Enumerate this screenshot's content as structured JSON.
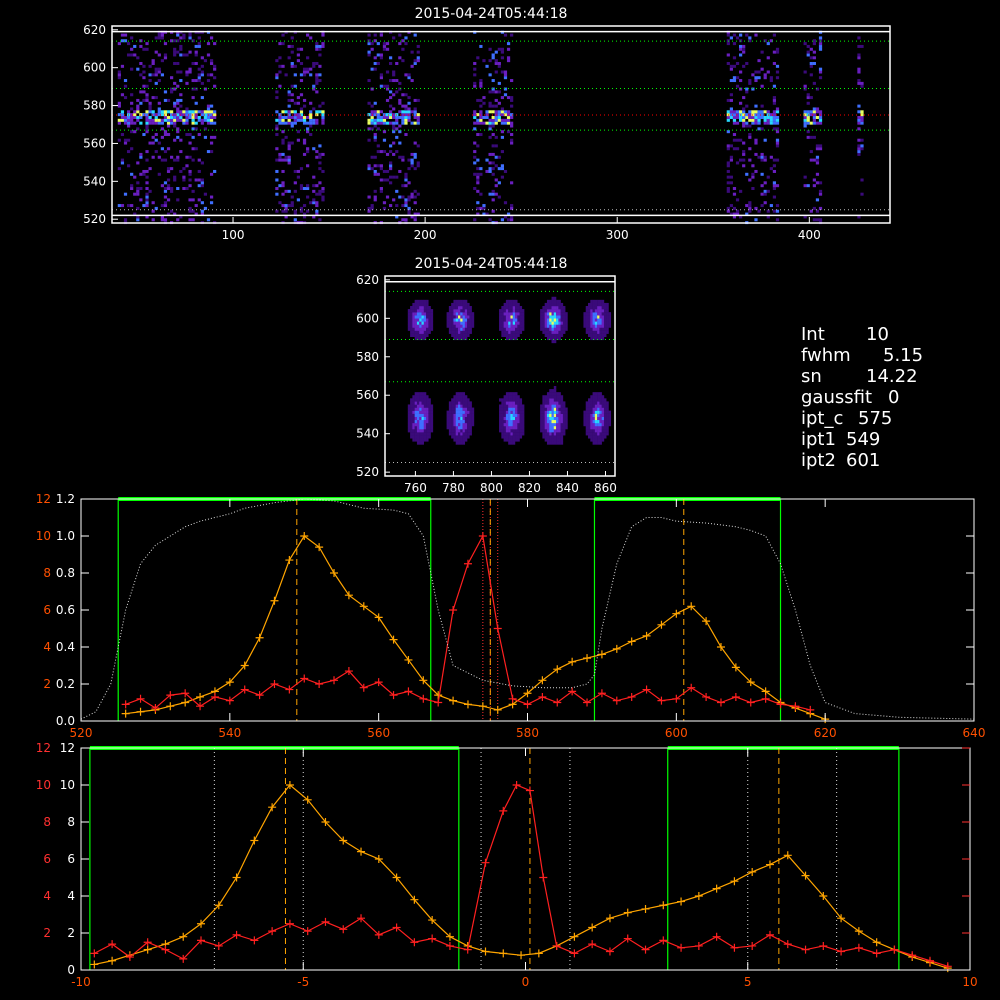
{
  "colors": {
    "background": "#000000",
    "frame": "#ffffff",
    "orange_series": "#ffa500",
    "red_series": "#ff2020",
    "green": "#00ff00",
    "dotted_line": "#bbbbbb",
    "orange_axis": "#ff5000",
    "tick_labels": "#ffffff"
  },
  "info_panel": {
    "int_label": "Int",
    "int_value": "10",
    "fwhm_label": "fwhm",
    "fwhm_value": "5.15",
    "sn_label": "sn",
    "sn_value": "14.22",
    "gaussfit_label": "gaussfit",
    "gaussfit_value": "0",
    "ipt_c_label": "ipt_c",
    "ipt_c_value": "575",
    "ipt1_label": "ipt1",
    "ipt1_value": "549",
    "ipt2_label": "ipt2",
    "ipt2_value": "601"
  },
  "chart_data": [
    {
      "id": "top-image",
      "type": "heatmap",
      "title": "2015-04-24T05:44:18",
      "xlim": [
        37,
        442
      ],
      "ylim": [
        518,
        622
      ],
      "x_ticks": [
        100,
        200,
        300,
        400
      ],
      "y_ticks": [
        520,
        540,
        560,
        580,
        600,
        620
      ],
      "horizontal_lines": [
        {
          "y": 525,
          "style": "dotted",
          "color": "#bbbbbb"
        },
        {
          "y": 567,
          "style": "dotted",
          "color": "#00ff00"
        },
        {
          "y": 575,
          "style": "dotted",
          "color": "#ff0000"
        },
        {
          "y": 589,
          "style": "dotted",
          "color": "#00ff00"
        },
        {
          "y": 614,
          "style": "dotted",
          "color": "#00ff00"
        },
        {
          "y": 619,
          "style": "solid",
          "color": "#ffffff"
        },
        {
          "y": 522,
          "style": "solid",
          "color": "#ffffff"
        }
      ],
      "columns": [
        [
          40,
          90
        ],
        [
          122,
          146
        ],
        [
          170,
          197
        ],
        [
          225,
          245
        ],
        [
          357,
          383
        ],
        [
          397,
          406
        ],
        [
          425,
          428
        ]
      ],
      "hot_band_y": 575
    },
    {
      "id": "middle-image",
      "type": "heatmap",
      "title": "2015-04-24T05:44:18",
      "xlim": [
        744,
        865
      ],
      "ylim": [
        518,
        622
      ],
      "x_ticks": [
        760,
        780,
        800,
        820,
        840,
        860
      ],
      "y_ticks": [
        520,
        540,
        560,
        580,
        600,
        620
      ],
      "horizontal_lines": [
        {
          "y": 525,
          "style": "dotted",
          "color": "#bbbbbb"
        },
        {
          "y": 567,
          "style": "dotted",
          "color": "#00ff00"
        },
        {
          "y": 589,
          "style": "dotted",
          "color": "#00ff00"
        },
        {
          "y": 614,
          "style": "dotted",
          "color": "#00ff00"
        },
        {
          "y": 619,
          "style": "solid",
          "color": "#ffffff"
        }
      ],
      "blob_x": [
        762,
        783,
        810,
        832,
        855
      ],
      "blob_rows": [
        600,
        549
      ]
    },
    {
      "id": "profile-pixels",
      "type": "line",
      "xlim": [
        520,
        640
      ],
      "ylim_left": [
        0,
        1.2
      ],
      "ylim_right": [
        0,
        12
      ],
      "x_ticks": [
        520,
        540,
        560,
        580,
        600,
        620,
        640
      ],
      "left_ticks_white": [
        "0.0",
        "0.2",
        "0.4",
        "0.6",
        "0.8",
        "1.0",
        "1.2"
      ],
      "left_ticks_orange": [
        "2",
        "4",
        "6",
        "8",
        "10",
        "12"
      ],
      "vertical_dashed_orange": [
        549,
        575,
        601
      ],
      "vertical_dotted_red": [
        574,
        575,
        576
      ],
      "green_windows": [
        [
          525,
          567
        ],
        [
          589,
          614
        ]
      ],
      "series": [
        {
          "x": [
            526,
            528,
            530,
            532,
            534,
            536,
            538,
            540,
            542,
            544,
            546,
            548,
            550,
            552,
            554,
            556,
            558,
            560,
            562,
            564,
            566,
            568,
            570,
            572,
            574,
            576,
            578,
            580,
            582,
            584,
            586,
            588,
            590,
            592,
            594,
            596,
            598,
            600,
            602,
            604,
            606,
            608,
            610,
            612,
            614,
            616,
            618,
            620
          ],
          "values": [
            0.4,
            0.5,
            0.6,
            0.8,
            1.0,
            1.3,
            1.6,
            2.1,
            3.0,
            4.5,
            6.5,
            8.7,
            10.0,
            9.4,
            8.0,
            6.8,
            6.2,
            5.6,
            4.4,
            3.3,
            2.2,
            1.4,
            1.1,
            0.9,
            0.8,
            0.6,
            0.9,
            1.5,
            2.2,
            2.8,
            3.2,
            3.4,
            3.6,
            3.9,
            4.3,
            4.6,
            5.2,
            5.8,
            6.2,
            5.4,
            4.0,
            2.9,
            2.1,
            1.6,
            1.0,
            0.7,
            0.4,
            0.1
          ],
          "color": "#ffa500",
          "marker": "+"
        },
        {
          "x": [
            526,
            528,
            530,
            532,
            534,
            536,
            538,
            540,
            542,
            544,
            546,
            548,
            550,
            552,
            554,
            556,
            558,
            560,
            562,
            564,
            566,
            568,
            570,
            572,
            574,
            576,
            578,
            580,
            582,
            584,
            586,
            588,
            590,
            592,
            594,
            596,
            598,
            600,
            602,
            604,
            606,
            608,
            610,
            612,
            614,
            616,
            618
          ],
          "values": [
            0.9,
            1.2,
            0.7,
            1.4,
            1.5,
            0.8,
            1.3,
            1.1,
            1.7,
            1.4,
            2.0,
            1.7,
            2.3,
            2.0,
            2.2,
            2.7,
            1.8,
            2.1,
            1.4,
            1.6,
            1.2,
            1.0,
            6.0,
            8.5,
            10.0,
            5.0,
            1.2,
            0.9,
            1.3,
            1.0,
            1.6,
            1.0,
            1.5,
            1.1,
            1.3,
            1.7,
            1.1,
            1.2,
            1.8,
            1.3,
            1.0,
            1.3,
            1.0,
            1.2,
            0.9,
            0.8,
            0.6
          ],
          "color": "#ff2020",
          "marker": "+"
        },
        {
          "x": [
            520,
            522,
            524,
            525,
            526,
            528,
            530,
            532,
            534,
            536,
            538,
            540,
            542,
            546,
            550,
            554,
            558,
            562,
            564,
            566,
            568,
            570,
            574,
            578,
            582,
            586,
            588,
            589,
            590,
            592,
            594,
            596,
            598,
            600,
            604,
            608,
            610,
            612,
            614,
            616,
            618,
            620,
            624,
            630,
            640
          ],
          "values": [
            0.01,
            0.05,
            0.2,
            0.4,
            0.6,
            0.85,
            0.95,
            1.0,
            1.05,
            1.08,
            1.1,
            1.12,
            1.15,
            1.18,
            1.2,
            1.19,
            1.15,
            1.14,
            1.12,
            1.0,
            0.6,
            0.3,
            0.22,
            0.19,
            0.18,
            0.18,
            0.2,
            0.25,
            0.5,
            0.85,
            1.05,
            1.1,
            1.1,
            1.08,
            1.07,
            1.05,
            1.03,
            1.0,
            0.85,
            0.6,
            0.3,
            0.1,
            0.04,
            0.02,
            0.01
          ],
          "color": "#dddddd",
          "marker": "dotted",
          "axis": "left-fraction"
        }
      ]
    },
    {
      "id": "profile-offset",
      "type": "line",
      "xlim": [
        -10,
        10
      ],
      "ylim": [
        0,
        12
      ],
      "x_ticks": [
        -10,
        -5,
        0,
        5,
        10
      ],
      "y_ticks_white": [
        "0",
        "2",
        "4",
        "6",
        "8",
        "10",
        "12"
      ],
      "y_ticks_red": [
        "2",
        "4",
        "6",
        "8",
        "10",
        "12"
      ],
      "vertical_dashed_orange": [
        -5.4,
        0.1,
        5.7
      ],
      "vertical_dotted_white": [
        -7.0,
        -5.0,
        -1.0,
        1.0,
        5.0,
        7.0
      ],
      "green_windows": [
        [
          -9.8,
          -1.5
        ],
        [
          3.2,
          8.4
        ]
      ],
      "series": [
        {
          "x": [
            -9.7,
            -9.3,
            -8.9,
            -8.5,
            -8.1,
            -7.7,
            -7.3,
            -6.9,
            -6.5,
            -6.1,
            -5.7,
            -5.3,
            -4.9,
            -4.5,
            -4.1,
            -3.7,
            -3.3,
            -2.9,
            -2.5,
            -2.1,
            -1.7,
            -1.3,
            -0.9,
            -0.5,
            -0.1,
            0.3,
            0.7,
            1.1,
            1.5,
            1.9,
            2.3,
            2.7,
            3.1,
            3.5,
            3.9,
            4.3,
            4.7,
            5.1,
            5.5,
            5.9,
            6.3,
            6.7,
            7.1,
            7.5,
            7.9,
            8.3,
            8.7,
            9.1,
            9.5
          ],
          "values": [
            0.3,
            0.5,
            0.8,
            1.1,
            1.4,
            1.8,
            2.5,
            3.5,
            5.0,
            7.0,
            8.8,
            10.0,
            9.2,
            8.0,
            7.0,
            6.4,
            6.0,
            5.0,
            3.8,
            2.7,
            1.8,
            1.3,
            1.0,
            0.9,
            0.8,
            0.9,
            1.3,
            1.8,
            2.3,
            2.8,
            3.1,
            3.3,
            3.5,
            3.7,
            4.0,
            4.4,
            4.8,
            5.3,
            5.7,
            6.2,
            5.1,
            4.0,
            2.8,
            2.1,
            1.5,
            1.1,
            0.7,
            0.4,
            0.1
          ],
          "color": "#ffa500",
          "marker": "+"
        },
        {
          "x": [
            -9.7,
            -9.3,
            -8.9,
            -8.5,
            -8.1,
            -7.7,
            -7.3,
            -6.9,
            -6.5,
            -6.1,
            -5.7,
            -5.3,
            -4.9,
            -4.5,
            -4.1,
            -3.7,
            -3.3,
            -2.9,
            -2.5,
            -2.1,
            -1.7,
            -1.3,
            -0.9,
            -0.5,
            -0.2,
            0.1,
            0.4,
            0.7,
            1.1,
            1.5,
            1.9,
            2.3,
            2.7,
            3.1,
            3.5,
            3.9,
            4.3,
            4.7,
            5.1,
            5.5,
            5.9,
            6.3,
            6.7,
            7.1,
            7.5,
            7.9,
            8.3,
            8.7,
            9.1,
            9.5
          ],
          "values": [
            0.9,
            1.4,
            0.7,
            1.5,
            1.1,
            0.6,
            1.6,
            1.3,
            1.9,
            1.6,
            2.1,
            2.5,
            2.1,
            2.6,
            2.2,
            2.8,
            1.9,
            2.3,
            1.5,
            1.7,
            1.3,
            1.1,
            5.8,
            8.6,
            10.0,
            9.7,
            5.0,
            1.3,
            0.9,
            1.4,
            1.0,
            1.7,
            1.1,
            1.6,
            1.2,
            1.3,
            1.8,
            1.2,
            1.3,
            1.9,
            1.4,
            1.1,
            1.3,
            1.0,
            1.2,
            0.9,
            1.1,
            0.8,
            0.5,
            0.2
          ],
          "color": "#ff2020",
          "marker": "+"
        }
      ]
    }
  ]
}
